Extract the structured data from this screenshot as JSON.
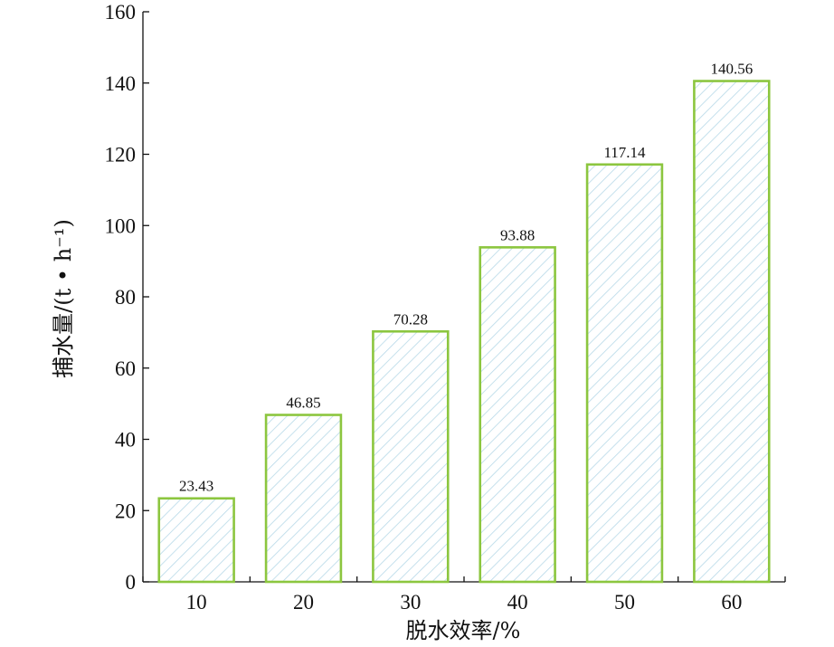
{
  "chart_data": {
    "type": "bar",
    "title": "",
    "xlabel": "脱水效率/%",
    "ylabel": "捕水量/(t • h⁻¹)",
    "categories": [
      "10",
      "20",
      "30",
      "40",
      "50",
      "60"
    ],
    "values": [
      23.43,
      46.85,
      70.28,
      93.88,
      117.14,
      140.56
    ],
    "value_labels": [
      "23.43",
      "46.85",
      "70.28",
      "93.88",
      "117.14",
      "140.56"
    ],
    "ylim": [
      0,
      160
    ],
    "yticks": [
      "0",
      "20",
      "40",
      "60",
      "80",
      "100",
      "120",
      "140",
      "160"
    ],
    "grid": false,
    "legend": "none",
    "colors": {
      "bar_border": "#8cc63f",
      "bar_hatch": "#b7d9e8",
      "axis": "#111111"
    }
  }
}
